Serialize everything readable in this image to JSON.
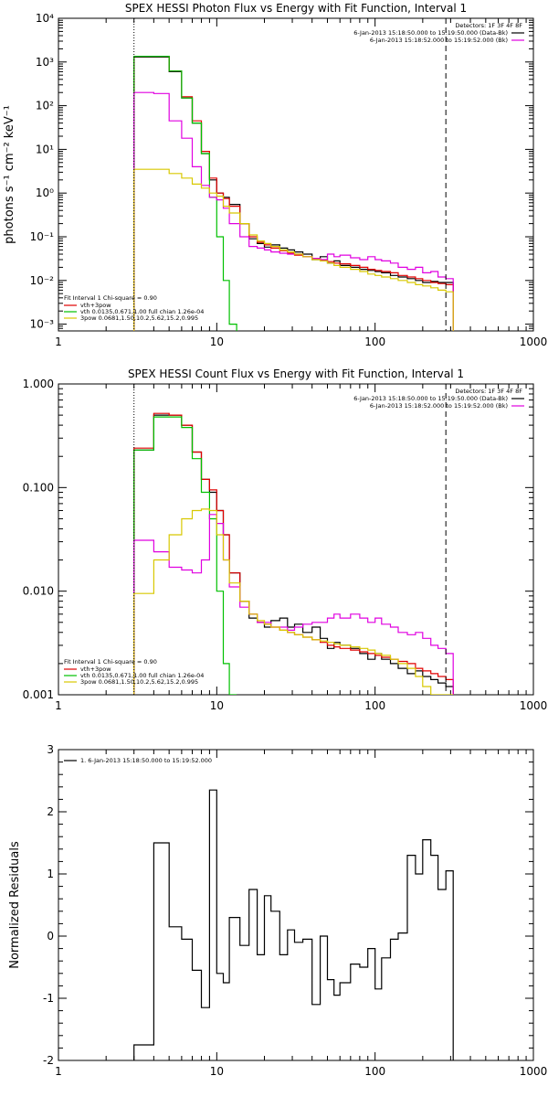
{
  "chart_data": [
    {
      "type": "line",
      "title": "SPEX HESSI Photon Flux vs Energy with Fit Function, Interval 1",
      "xlabel": "",
      "ylabel": "photons s⁻¹ cm⁻² keV⁻¹",
      "xscale": "log",
      "yscale": "log",
      "xlim": [
        1,
        1000
      ],
      "ylim": [
        0.0007,
        10000
      ],
      "x_tick_labels": [
        "1",
        "10",
        "100",
        "1000"
      ],
      "y_tick_labels": [
        "10⁻³",
        "10⁻²",
        "10⁻¹",
        "10⁰",
        "10¹",
        "10²",
        "10³",
        "10⁴"
      ],
      "y_tick_values": [
        0.001,
        0.01,
        0.1,
        1,
        10,
        100,
        1000,
        10000
      ],
      "legend_position": "top-right",
      "top_legend": {
        "header": "Detectors: 1F 3F 4F 8F",
        "entries": [
          {
            "label": "6-Jan-2013 15:18:50.000 to 15:19:50.000 (Data-Bk)",
            "color": "#000000"
          },
          {
            "label": "6-Jan-2013 15:18:52.000 to 15:19:52.000 (Bk)",
            "color": "#e000e0"
          }
        ]
      },
      "fit_legend": {
        "header": "Fit Interval 1   Chi-square = 0.90",
        "entries": [
          {
            "label": "vth+3pow",
            "color": "#e00000"
          },
          {
            "label": "vth 0.0135,0.671,1.00  full chian 1.26e-04",
            "color": "#00c000"
          },
          {
            "label": "3pow 0.0681,1.50,10.2,5.62,15.2,0.995",
            "color": "#d8c800"
          }
        ]
      },
      "vlines": [
        {
          "x": 3,
          "style": "dotted"
        },
        {
          "x": 280,
          "style": "dashed"
        }
      ],
      "series": [
        {
          "color": "#000000",
          "x": [
            3,
            4,
            5,
            6,
            7,
            8,
            9,
            10,
            11,
            12,
            14,
            16,
            18,
            20,
            22,
            25,
            28,
            31,
            35,
            40,
            45,
            50,
            55,
            60,
            70,
            80,
            90,
            100,
            110,
            125,
            140,
            160,
            180,
            200,
            225,
            250,
            280
          ],
          "y": [
            1300,
            1300,
            600,
            150,
            40,
            8,
            2,
            1.0,
            0.8,
            0.55,
            0.2,
            0.09,
            0.07,
            0.058,
            0.065,
            0.055,
            0.05,
            0.045,
            0.04,
            0.03,
            0.035,
            0.025,
            0.028,
            0.022,
            0.02,
            0.018,
            0.017,
            0.016,
            0.015,
            0.013,
            0.012,
            0.011,
            0.01,
            0.009,
            0.0095,
            0.009,
            0.009
          ]
        },
        {
          "color": "#e00000",
          "x": [
            3,
            4,
            5,
            6,
            7,
            8,
            9,
            10,
            11,
            12,
            14,
            16,
            18,
            20,
            22,
            25,
            28,
            31,
            35,
            40,
            45,
            50,
            55,
            60,
            70,
            80,
            90,
            100,
            110,
            125,
            140,
            160,
            180,
            200,
            225,
            250,
            280
          ],
          "y": [
            1350,
            1350,
            620,
            160,
            45,
            9,
            2.2,
            1.0,
            0.75,
            0.5,
            0.2,
            0.1,
            0.075,
            0.065,
            0.055,
            0.048,
            0.042,
            0.038,
            0.035,
            0.032,
            0.029,
            0.027,
            0.025,
            0.024,
            0.022,
            0.02,
            0.018,
            0.017,
            0.016,
            0.015,
            0.013,
            0.012,
            0.011,
            0.01,
            0.009,
            0.0085,
            0.008
          ]
        },
        {
          "color": "#00c000",
          "x": [
            3,
            4,
            5,
            6,
            7,
            8,
            9,
            10,
            11,
            12
          ],
          "y": [
            1350,
            1350,
            620,
            150,
            40,
            8,
            0.8,
            0.1,
            0.01,
            0.001
          ]
        },
        {
          "color": "#e000e0",
          "x": [
            3,
            4,
            5,
            6,
            7,
            8,
            9,
            10,
            11,
            12,
            14,
            16,
            18,
            20,
            22,
            25,
            28,
            31,
            35,
            40,
            45,
            50,
            55,
            60,
            70,
            80,
            90,
            100,
            110,
            125,
            140,
            160,
            180,
            200,
            225,
            250,
            280
          ],
          "y": [
            200,
            190,
            45,
            18,
            4,
            1.5,
            0.8,
            0.7,
            0.45,
            0.2,
            0.1,
            0.06,
            0.055,
            0.05,
            0.045,
            0.042,
            0.04,
            0.04,
            0.035,
            0.032,
            0.03,
            0.04,
            0.035,
            0.038,
            0.033,
            0.03,
            0.035,
            0.03,
            0.028,
            0.025,
            0.02,
            0.018,
            0.02,
            0.015,
            0.016,
            0.012,
            0.011
          ]
        },
        {
          "color": "#d8c800",
          "x": [
            3,
            4,
            5,
            6,
            7,
            8,
            9,
            10,
            11,
            12,
            14,
            16,
            18,
            20,
            22,
            25,
            28,
            31,
            35,
            40,
            45,
            50,
            55,
            60,
            70,
            80,
            90,
            100,
            110,
            125,
            140,
            160,
            180,
            200,
            225,
            250,
            280
          ],
          "y": [
            3.5,
            3.5,
            2.8,
            2.2,
            1.6,
            1.3,
            1.0,
            0.85,
            0.5,
            0.35,
            0.2,
            0.11,
            0.08,
            0.07,
            0.06,
            0.05,
            0.045,
            0.04,
            0.035,
            0.03,
            0.028,
            0.025,
            0.022,
            0.02,
            0.018,
            0.016,
            0.014,
            0.013,
            0.012,
            0.011,
            0.01,
            0.009,
            0.008,
            0.0075,
            0.0068,
            0.006,
            0.0055
          ]
        }
      ]
    },
    {
      "type": "line",
      "title": "SPEX HESSI Count Flux vs Energy with Fit Function, Interval 1",
      "xlabel": "",
      "ylabel": "",
      "xscale": "log",
      "yscale": "log",
      "xlim": [
        1,
        1000
      ],
      "ylim": [
        0.001,
        1.0
      ],
      "x_tick_labels": [
        "1",
        "10",
        "100",
        "1000"
      ],
      "y_tick_labels": [
        "0.001",
        "0.010",
        "0.100",
        "1.000"
      ],
      "y_tick_values": [
        0.001,
        0.01,
        0.1,
        1.0
      ],
      "legend_position": "top-right",
      "top_legend": {
        "header": "Detectors: 1F 3F 4F 8F",
        "entries": [
          {
            "label": "6-Jan-2013 15:18:50.000 to 15:19:50.000 (Data-Bk)",
            "color": "#000000"
          },
          {
            "label": "6-Jan-2013 15:18:52.000 to 15:19:52.000 (Bk)",
            "color": "#e000e0"
          }
        ]
      },
      "fit_legend": {
        "header": "Fit Interval 1   Chi-square = 0.90",
        "entries": [
          {
            "label": "vth+3pow",
            "color": "#e00000"
          },
          {
            "label": "vth 0.0135,0.671,1.00  full chian 1.26e-04",
            "color": "#00c000"
          },
          {
            "label": "3pow 0.0681,1.50,10.2,5.62,15.2,0.995",
            "color": "#d8c800"
          }
        ]
      },
      "vlines": [
        {
          "x": 3,
          "style": "dotted"
        },
        {
          "x": 280,
          "style": "dashed"
        }
      ],
      "series": [
        {
          "color": "#000000",
          "x": [
            3,
            4,
            5,
            6,
            7,
            8,
            9,
            10,
            11,
            12,
            14,
            16,
            18,
            20,
            22,
            25,
            28,
            31,
            35,
            40,
            45,
            50,
            55,
            60,
            70,
            80,
            90,
            100,
            110,
            125,
            140,
            160,
            180,
            200,
            225,
            250,
            280
          ],
          "y": [
            0.23,
            0.5,
            0.5,
            0.4,
            0.22,
            0.12,
            0.09,
            0.06,
            0.035,
            0.015,
            0.008,
            0.0055,
            0.005,
            0.0045,
            0.0052,
            0.0055,
            0.0045,
            0.0048,
            0.004,
            0.0045,
            0.0035,
            0.0028,
            0.0032,
            0.003,
            0.0028,
            0.0025,
            0.0022,
            0.0025,
            0.0022,
            0.002,
            0.0018,
            0.0016,
            0.0017,
            0.0015,
            0.0014,
            0.0013,
            0.0012
          ]
        },
        {
          "color": "#e00000",
          "x": [
            3,
            4,
            5,
            6,
            7,
            8,
            9,
            10,
            11,
            12,
            14,
            16,
            18,
            20,
            22,
            25,
            28,
            31,
            35,
            40,
            45,
            50,
            55,
            60,
            70,
            80,
            90,
            100,
            110,
            125,
            140,
            160,
            180,
            200,
            225,
            250,
            280
          ],
          "y": [
            0.24,
            0.52,
            0.5,
            0.4,
            0.22,
            0.12,
            0.095,
            0.06,
            0.035,
            0.015,
            0.008,
            0.006,
            0.005,
            0.0048,
            0.0045,
            0.0042,
            0.004,
            0.0038,
            0.0036,
            0.0034,
            0.0032,
            0.003,
            0.0029,
            0.0028,
            0.0027,
            0.0026,
            0.0025,
            0.0024,
            0.0023,
            0.0022,
            0.0021,
            0.002,
            0.0018,
            0.0017,
            0.0016,
            0.0015,
            0.0014
          ]
        },
        {
          "color": "#00c000",
          "x": [
            3,
            4,
            5,
            6,
            7,
            8,
            9,
            10,
            11,
            12
          ],
          "y": [
            0.23,
            0.48,
            0.48,
            0.38,
            0.19,
            0.09,
            0.05,
            0.01,
            0.002,
            0.0008
          ]
        },
        {
          "color": "#e000e0",
          "x": [
            3,
            4,
            5,
            6,
            7,
            8,
            9,
            10,
            11,
            12,
            14,
            16,
            18,
            20,
            22,
            25,
            28,
            31,
            35,
            40,
            45,
            50,
            55,
            60,
            70,
            80,
            90,
            100,
            110,
            125,
            140,
            160,
            180,
            200,
            225,
            250,
            280
          ],
          "y": [
            0.031,
            0.024,
            0.017,
            0.016,
            0.015,
            0.02,
            0.055,
            0.045,
            0.02,
            0.011,
            0.007,
            0.006,
            0.005,
            0.005,
            0.0045,
            0.0045,
            0.0042,
            0.0045,
            0.0048,
            0.005,
            0.005,
            0.0055,
            0.006,
            0.0055,
            0.006,
            0.0055,
            0.005,
            0.0055,
            0.0048,
            0.0045,
            0.004,
            0.0038,
            0.004,
            0.0035,
            0.003,
            0.0028,
            0.0025
          ]
        },
        {
          "color": "#d8c800",
          "x": [
            3,
            4,
            5,
            6,
            7,
            8,
            9,
            10,
            11,
            12,
            14,
            16,
            18,
            20,
            22,
            25,
            28,
            31,
            35,
            40,
            45,
            50,
            55,
            60,
            70,
            80,
            90,
            100,
            110,
            125,
            140,
            160,
            180,
            200,
            225,
            250,
            280
          ],
          "y": [
            0.0095,
            0.02,
            0.035,
            0.05,
            0.06,
            0.062,
            0.06,
            0.035,
            0.02,
            0.012,
            0.008,
            0.006,
            0.0052,
            0.0048,
            0.0045,
            0.0042,
            0.004,
            0.0038,
            0.0036,
            0.0034,
            0.0033,
            0.0032,
            0.0031,
            0.003,
            0.0029,
            0.0028,
            0.0027,
            0.0025,
            0.0024,
            0.0022,
            0.002,
            0.0018,
            0.0015,
            0.0012,
            0.001,
            0.0009,
            0.0008
          ]
        }
      ]
    },
    {
      "type": "line",
      "title": "",
      "xlabel": "",
      "ylabel": "Normalized Residuals",
      "xscale": "log",
      "yscale": "linear",
      "xlim": [
        1,
        1000
      ],
      "ylim": [
        -2,
        3
      ],
      "x_tick_labels": [
        "1",
        "10",
        "100",
        "1000"
      ],
      "y_tick_labels": [
        "-2",
        "-1",
        "0",
        "1",
        "2",
        "3"
      ],
      "y_tick_values": [
        -2,
        -1,
        0,
        1,
        2,
        3
      ],
      "legend_position": "top-left",
      "legend": [
        {
          "label": "1.  6-Jan-2013 15:18:50.000 to 15:19:52.000",
          "color": "#000000"
        }
      ],
      "series": [
        {
          "color": "#000000",
          "x": [
            3,
            4,
            5,
            6,
            7,
            8,
            9,
            10,
            11,
            12,
            14,
            16,
            18,
            20,
            22,
            25,
            28,
            31,
            35,
            40,
            45,
            50,
            55,
            60,
            70,
            80,
            90,
            100,
            110,
            125,
            140,
            160,
            180,
            200,
            225,
            250,
            280
          ],
          "y": [
            -1.75,
            1.5,
            0.15,
            -0.05,
            -0.55,
            -1.15,
            2.35,
            -0.6,
            -0.75,
            0.3,
            -0.15,
            0.75,
            -0.3,
            0.65,
            0.4,
            -0.3,
            0.1,
            -0.1,
            -0.05,
            -1.1,
            0.0,
            -0.7,
            -0.95,
            -0.75,
            -0.45,
            -0.5,
            -0.2,
            -0.85,
            -0.35,
            -0.05,
            0.05,
            1.3,
            1.0,
            1.55,
            1.3,
            0.75,
            1.05
          ]
        }
      ]
    }
  ]
}
